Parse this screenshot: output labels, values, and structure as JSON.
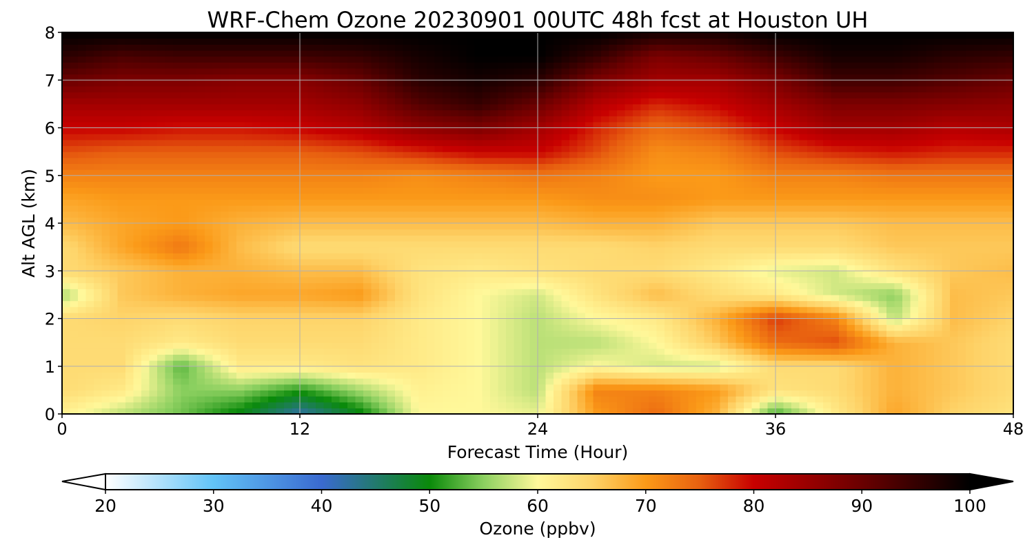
{
  "chart_data": {
    "type": "heatmap",
    "title": "WRF-Chem Ozone  20230901 00UTC 48h fcst at Houston UH",
    "xlabel": "Forecast Time (Hour)",
    "ylabel": "Alt AGL (km)",
    "xlim": [
      0,
      48
    ],
    "ylim": [
      0,
      8
    ],
    "x_ticks": [
      "0",
      "12",
      "24",
      "36",
      "48"
    ],
    "y_ticks": [
      "0",
      "1",
      "2",
      "3",
      "4",
      "5",
      "6",
      "7",
      "8"
    ],
    "grid": true,
    "colorbar": {
      "label": "Ozone  (ppbv)",
      "range": [
        20,
        100
      ],
      "extend": "both",
      "ticks": [
        "20",
        "30",
        "40",
        "50",
        "60",
        "70",
        "80",
        "90",
        "100"
      ],
      "colors": {
        "20": "#ffffff",
        "30": "#62c3f7",
        "40": "#3a6ad0",
        "50": "#0a8a0a",
        "55": "#8cd060",
        "60": "#fff89a",
        "65": "#fed46a",
        "70": "#fb9a18",
        "75": "#e86010",
        "80": "#c80000",
        "90": "#6a0000",
        "100": "#000000"
      }
    },
    "field_description": "Ozone (ppbv) vs forecast hour and altitude; values read approximately from the colour shading",
    "hours": [
      0,
      3,
      6,
      9,
      12,
      15,
      18,
      21,
      24,
      27,
      30,
      33,
      36,
      39,
      42,
      45,
      48
    ],
    "altitudes_km": [
      0,
      0.5,
      1,
      1.5,
      2,
      2.5,
      3,
      3.5,
      4,
      4.5,
      5,
      5.5,
      6,
      6.5,
      7,
      7.5,
      8
    ],
    "values": [
      [
        61,
        57,
        54,
        49,
        42,
        49,
        60,
        60,
        59,
        70,
        74,
        68,
        52,
        62,
        69,
        65,
        63
      ],
      [
        64,
        62,
        55,
        55,
        51,
        56,
        61,
        60,
        57,
        72,
        72,
        70,
        63,
        64,
        68,
        66,
        64
      ],
      [
        64,
        64,
        53,
        62,
        62,
        63,
        62,
        60,
        57,
        60,
        58,
        58,
        64,
        64,
        68,
        66,
        64
      ],
      [
        64,
        64,
        62,
        64,
        64,
        64,
        62,
        60,
        57,
        57,
        60,
        66,
        74,
        76,
        68,
        66,
        64
      ],
      [
        64,
        65,
        64,
        65,
        65,
        65,
        62,
        60,
        57,
        60,
        62,
        68,
        77,
        72,
        57,
        67,
        65
      ],
      [
        56,
        66,
        68,
        69,
        69,
        70,
        63,
        60,
        58,
        63,
        67,
        64,
        62,
        58,
        55,
        67,
        66
      ],
      [
        64,
        66,
        68,
        68,
        67,
        67,
        63,
        62,
        63,
        64,
        64,
        62,
        59,
        58,
        63,
        66,
        67
      ],
      [
        64,
        69,
        73,
        67,
        64,
        64,
        64,
        64,
        64,
        64,
        65,
        64,
        64,
        64,
        66,
        66,
        66
      ],
      [
        67,
        69,
        70,
        68,
        67,
        67,
        67,
        67,
        67,
        68,
        68,
        66,
        66,
        66,
        67,
        67,
        67
      ],
      [
        69,
        70,
        70,
        70,
        70,
        70,
        70,
        70,
        70,
        71,
        71,
        70,
        70,
        70,
        70,
        70,
        70
      ],
      [
        72,
        72,
        72,
        72,
        72,
        72,
        71,
        72,
        73,
        72,
        70,
        70,
        72,
        72,
        73,
        73,
        73
      ],
      [
        76,
        75,
        75,
        75,
        75,
        76,
        78,
        80,
        80,
        76,
        71,
        72,
        76,
        78,
        79,
        78,
        78
      ],
      [
        80,
        80,
        79,
        79,
        80,
        82,
        86,
        88,
        84,
        78,
        74,
        76,
        80,
        84,
        84,
        82,
        83
      ],
      [
        84,
        84,
        84,
        84,
        84,
        86,
        92,
        95,
        90,
        82,
        78,
        80,
        84,
        88,
        88,
        87,
        86
      ],
      [
        90,
        88,
        88,
        87,
        87,
        90,
        96,
        98,
        96,
        88,
        84,
        84,
        88,
        94,
        94,
        92,
        90
      ],
      [
        96,
        93,
        94,
        94,
        94,
        95,
        98,
        100,
        100,
        95,
        88,
        90,
        94,
        98,
        98,
        96,
        95
      ],
      [
        100,
        100,
        100,
        100,
        100,
        100,
        100,
        100,
        100,
        100,
        98,
        98,
        100,
        100,
        100,
        100,
        100
      ]
    ]
  }
}
